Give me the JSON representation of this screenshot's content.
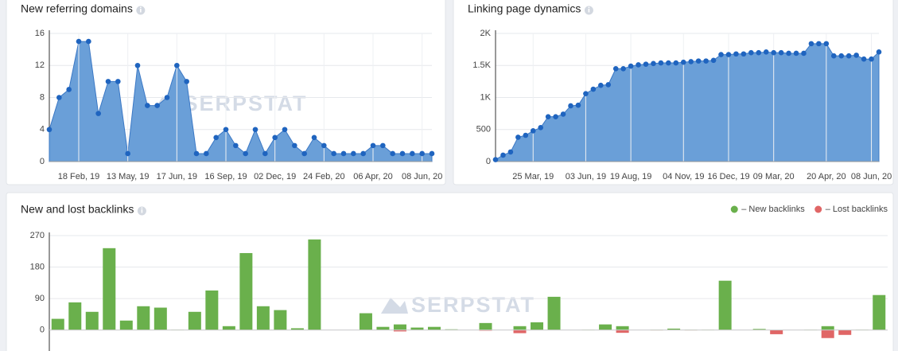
{
  "chart_data": [
    {
      "type": "area",
      "title": "New referring domains",
      "watermark": "SERPSTAT",
      "categories": [
        null,
        null,
        null,
        "18 Feb, 19",
        null,
        null,
        null,
        null,
        "13 May, 19",
        null,
        null,
        null,
        null,
        "17 Jun, 19",
        null,
        null,
        null,
        null,
        "16 Sep, 19",
        null,
        null,
        null,
        null,
        "02 Dec, 19",
        null,
        null,
        null,
        null,
        "24 Feb, 20",
        null,
        null,
        null,
        null,
        "06 Apr, 20",
        null,
        null,
        null,
        null,
        "08 Jun, 20",
        null
      ],
      "values": [
        4,
        8,
        9,
        15,
        15,
        6,
        10,
        10,
        1,
        12,
        7,
        7,
        8,
        12,
        10,
        1,
        1,
        3,
        4,
        2,
        1,
        4,
        1,
        3,
        4,
        2,
        1,
        3,
        2,
        1,
        1,
        1,
        1,
        2,
        2,
        1,
        1,
        1,
        1,
        1
      ],
      "color": "#6a9fd8",
      "line_color": "#3b78c5",
      "point_color": "#1f64bf",
      "ylim": [
        0,
        16
      ],
      "yticks": [
        0,
        4,
        8,
        12,
        16
      ],
      "grid": true
    },
    {
      "type": "area",
      "title": "Linking page dynamics",
      "watermark": "SERPSTAT",
      "categories": [
        null,
        null,
        null,
        null,
        null,
        "25 Mar, 19",
        null,
        null,
        null,
        null,
        null,
        null,
        "03 Jun, 19",
        null,
        null,
        null,
        null,
        null,
        "19 Aug, 19",
        null,
        null,
        null,
        null,
        null,
        null,
        "04 Nov, 19",
        null,
        null,
        null,
        null,
        null,
        "16 Dec, 19",
        null,
        null,
        null,
        null,
        null,
        "09 Mar, 20",
        null,
        null,
        null,
        null,
        null,
        null,
        "20 Apr, 20",
        null,
        null,
        null,
        null,
        null,
        "08 Jun, 20",
        null
      ],
      "values": [
        30,
        100,
        150,
        380,
        410,
        480,
        530,
        700,
        700,
        740,
        870,
        880,
        1060,
        1130,
        1190,
        1200,
        1450,
        1450,
        1490,
        1510,
        1520,
        1530,
        1540,
        1540,
        1540,
        1550,
        1560,
        1570,
        1570,
        1580,
        1670,
        1670,
        1680,
        1680,
        1700,
        1700,
        1710,
        1700,
        1700,
        1690,
        1690,
        1690,
        1840,
        1840,
        1840,
        1650,
        1650,
        1650,
        1660,
        1600,
        1600,
        1710
      ],
      "color": "#6a9fd8",
      "line_color": "#3b78c5",
      "point_color": "#1f64bf",
      "ylim": [
        0,
        2000
      ],
      "yticks": [
        0,
        500,
        {
          "value": 1000,
          "label": "1K"
        },
        {
          "value": 1500,
          "label": "1.5K"
        },
        {
          "value": 2000,
          "label": "2K"
        }
      ],
      "grid": true
    },
    {
      "type": "bar",
      "title": "New and lost backlinks",
      "watermark": "SERPSTAT",
      "legend": "top-right",
      "series": [
        {
          "name": "– New backlinks",
          "color": "#6ab04c",
          "values": [
            32,
            79,
            52,
            234,
            27,
            68,
            64,
            1,
            52,
            113,
            11,
            220,
            68,
            57,
            5,
            259,
            0,
            0,
            48,
            9,
            16,
            7,
            9,
            2,
            0,
            20,
            0,
            11,
            22,
            95,
            0,
            1,
            16,
            11,
            0,
            1,
            4,
            1,
            1,
            141,
            0,
            3,
            0,
            0,
            1,
            11,
            0,
            1,
            100
          ]
        },
        {
          "name": "– Lost backlinks",
          "color": "#e06666",
          "values": [
            0,
            0,
            0,
            0,
            0,
            0,
            0,
            0,
            0,
            0,
            0,
            0,
            0,
            0,
            0,
            0,
            0,
            0,
            0,
            0,
            -4,
            0,
            0,
            0,
            0,
            -2,
            0,
            -9,
            0,
            0,
            0,
            0,
            0,
            -8,
            0,
            -1,
            0,
            -1,
            0,
            0,
            0,
            0,
            -12,
            0,
            0,
            -23,
            -14,
            0,
            0
          ]
        }
      ],
      "ylim": [
        -60,
        270
      ],
      "yticks": [
        0,
        90,
        180,
        270
      ],
      "grid": true
    }
  ]
}
